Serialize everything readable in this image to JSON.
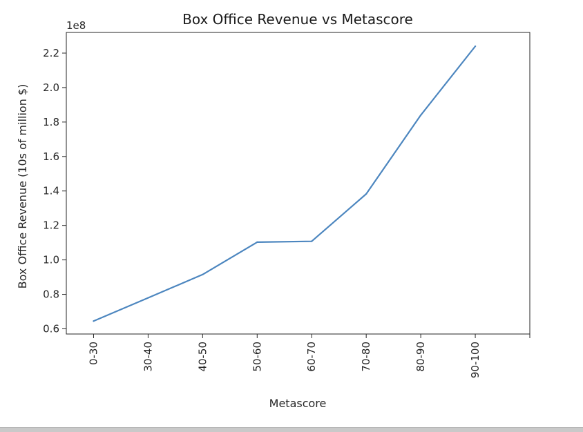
{
  "chart_data": {
    "type": "line",
    "title": "Box Office Revenue  vs Metascore",
    "xlabel": "Metascore",
    "ylabel": "Box Office Revenue (10s of million $)",
    "offset_label": "1e8",
    "categories": [
      "0-30",
      "30-40",
      "40-50",
      "50-60",
      "60-70",
      "70-80",
      "80-90",
      "90-100"
    ],
    "series": [
      {
        "values": [
          0.645,
          0.78,
          0.915,
          1.103,
          1.108,
          1.383,
          1.84,
          2.24
        ],
        "color": "#4c86bf"
      }
    ],
    "xlim": [
      -0.5,
      8
    ],
    "ylim": [
      0.57,
      2.32
    ],
    "yticks": [
      0.6,
      0.8,
      1.0,
      1.2,
      1.4,
      1.6,
      1.8,
      2.0,
      2.2
    ],
    "ytick_labels": [
      "0.6",
      "0.8",
      "1.0",
      "1.2",
      "1.4",
      "1.6",
      "1.8",
      "2.0",
      "2.2"
    ],
    "grid": false,
    "legend": "none"
  }
}
